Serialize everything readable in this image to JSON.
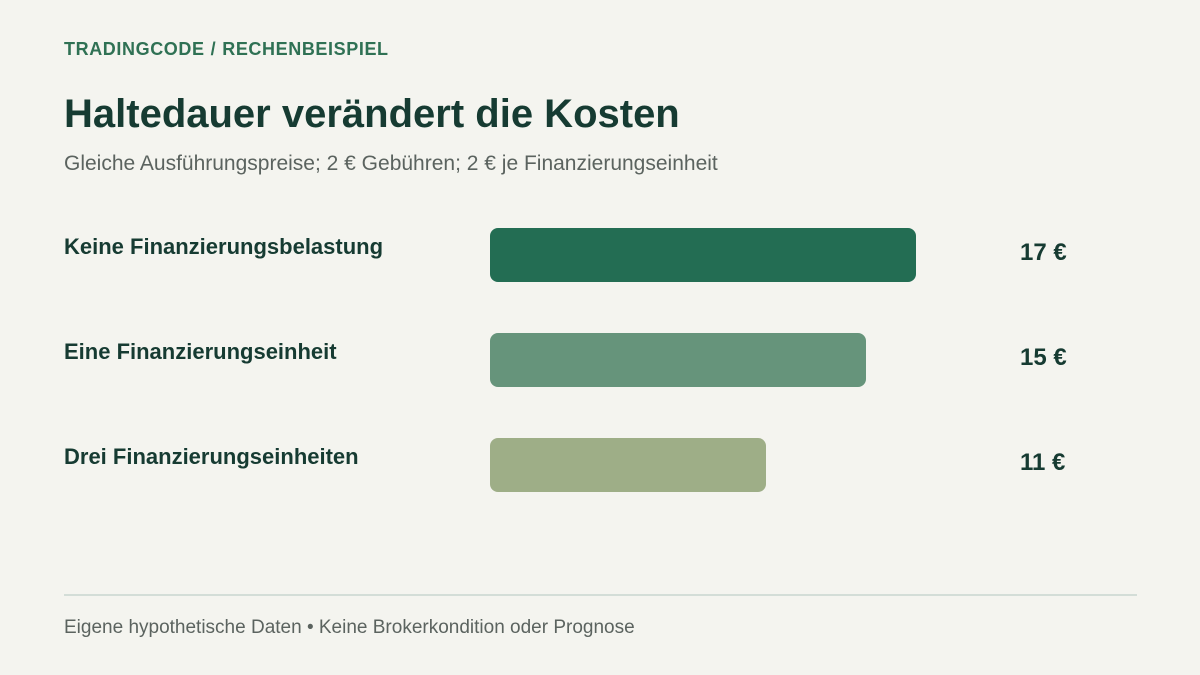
{
  "header": {
    "kicker_brand": "TRADINGCODE",
    "kicker_sep": "/",
    "kicker_section": "RECHENBEISPIEL",
    "title": "Haltedauer verändert die Kosten",
    "subtitle": "Gleiche Ausführungspreise; 2 € Gebühren; 2 € je Finanzierungseinheit"
  },
  "chart_data": {
    "type": "bar",
    "orientation": "horizontal",
    "title": "Haltedauer verändert die Kosten",
    "subtitle": "Gleiche Ausführungspreise; 2 € Gebühren; 2 € je Finanzierungseinheit",
    "categories": [
      "Keine Finanzierungsbelastung",
      "Eine Finanzierungseinheit",
      "Drei Finanzierungseinheiten"
    ],
    "values": [
      17,
      15,
      11
    ],
    "value_labels": [
      "17 €",
      "15 €",
      "11 €"
    ],
    "unit": "€",
    "colors": [
      "#236d53",
      "#66947b",
      "#9eae87"
    ],
    "xlim": [
      0,
      17
    ],
    "grid": false
  },
  "footer": {
    "note": "Eigene hypothetische Daten • Keine Brokerkondition oder Prognose"
  }
}
